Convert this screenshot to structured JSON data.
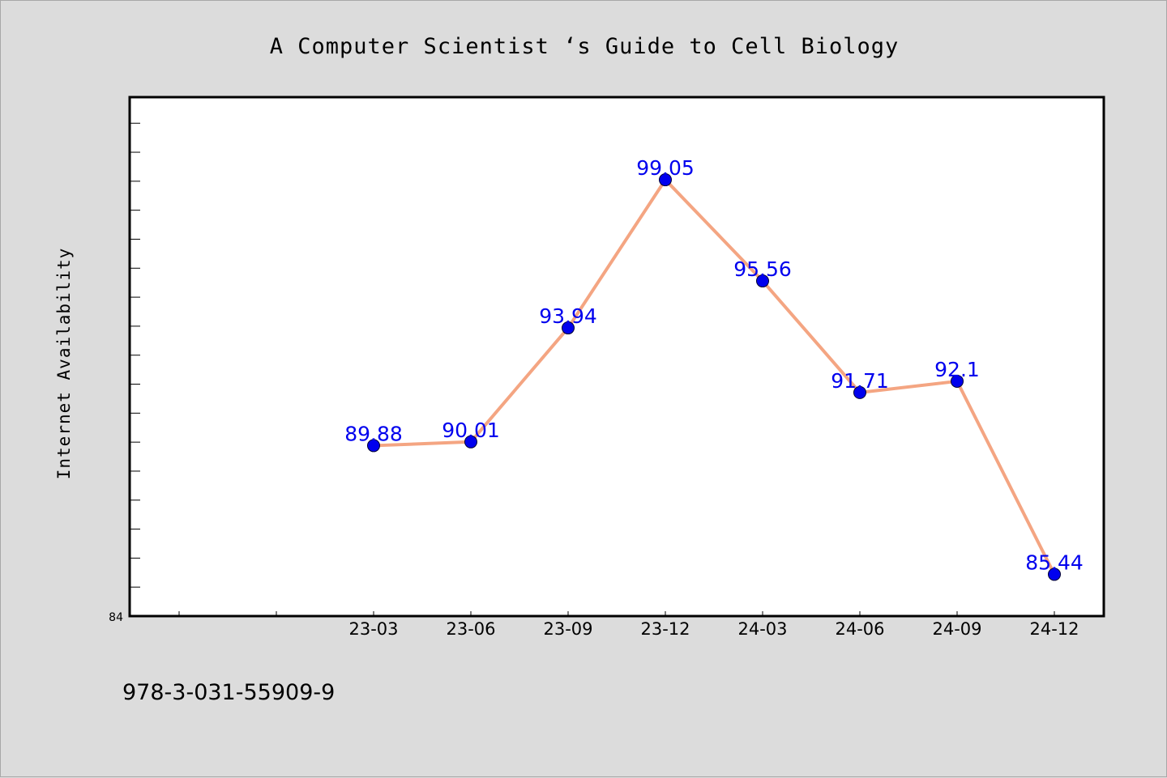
{
  "chart_data": {
    "type": "line",
    "title": "A Computer Scientist ‘s Guide to Cell Biology",
    "xlabel": "",
    "ylabel": "Internet Availability",
    "categories": [
      "23-03",
      "23-06",
      "23-09",
      "23-12",
      "24-03",
      "24-06",
      "24-09",
      "24-12"
    ],
    "values": [
      89.88,
      90.01,
      93.94,
      99.05,
      95.56,
      91.71,
      92.1,
      85.44
    ],
    "data_labels": [
      "89.88",
      "90.01",
      "93.94",
      "99.05",
      "95.56",
      "91.71",
      "92.1",
      "85.44"
    ],
    "y_min_label": "84",
    "ylim": [
      84,
      101.9
    ],
    "grid": false,
    "line_color": "#f4a582",
    "marker_color": "#0000ee",
    "label_color": "#0000ee"
  },
  "footer": {
    "isbn": "978-3-031-55909-9"
  }
}
